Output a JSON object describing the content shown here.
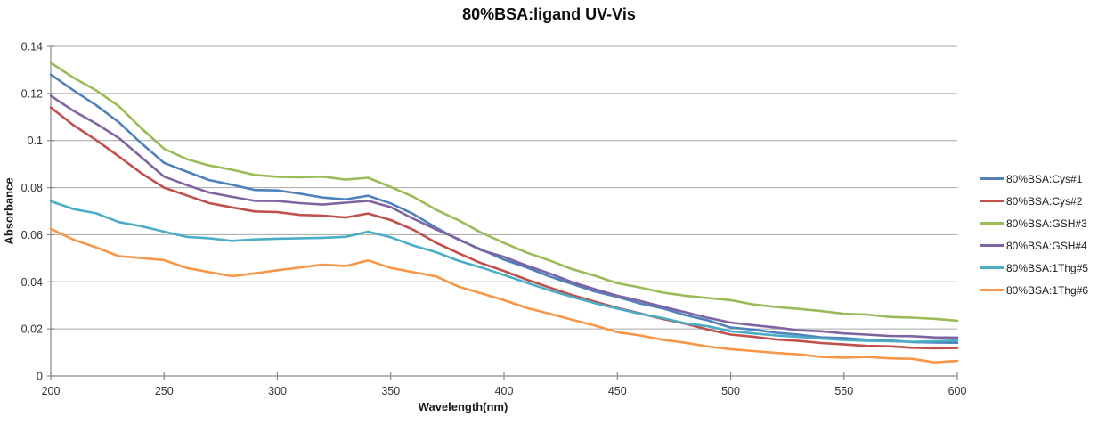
{
  "chart": {
    "title": "80%BSA:ligand UV-Vis",
    "xlabel": "Wavelength(nm)",
    "ylabel": "Absorbance"
  },
  "colors": {
    "background": "#ffffff",
    "gridline": "#a6a6a6",
    "axis_line": "#898989",
    "tick_text": "#333333",
    "title_text": "#0d0d0d"
  },
  "chart_data": {
    "type": "line",
    "title": "80%BSA:ligand UV-Vis",
    "xlabel": "Wavelength(nm)",
    "ylabel": "Absorbance",
    "xlim": [
      200,
      600
    ],
    "ylim": [
      0,
      0.14
    ],
    "grid": true,
    "legend_position": "right",
    "x_ticks": [
      200,
      250,
      300,
      350,
      400,
      450,
      500,
      550,
      600
    ],
    "y_ticks": [
      0,
      0.02,
      0.04,
      0.06,
      0.08,
      0.1,
      0.12,
      0.14
    ],
    "y_tick_labels": [
      "0",
      "0.02",
      "0.04",
      "0.06",
      "0.08",
      "0.1",
      "0.12",
      "0.14"
    ],
    "x": [
      200,
      210,
      220,
      230,
      240,
      250,
      260,
      270,
      280,
      290,
      300,
      310,
      320,
      330,
      340,
      350,
      360,
      370,
      380,
      390,
      400,
      410,
      420,
      430,
      440,
      450,
      460,
      470,
      480,
      490,
      500,
      510,
      520,
      530,
      540,
      550,
      560,
      570,
      580,
      590,
      600
    ],
    "series": [
      {
        "id": "cys1",
        "name": "80%BSA:Cys#1",
        "color": "#4F81BD",
        "values": [
          0.128,
          0.1213,
          0.115,
          0.1078,
          0.0988,
          0.0905,
          0.0868,
          0.0832,
          0.0812,
          0.079,
          0.0788,
          0.0774,
          0.0758,
          0.075,
          0.0766,
          0.0733,
          0.0688,
          0.063,
          0.0578,
          0.0537,
          0.0494,
          0.0461,
          0.0423,
          0.0391,
          0.0359,
          0.0336,
          0.0308,
          0.0287,
          0.0259,
          0.0236,
          0.0206,
          0.0197,
          0.0184,
          0.0176,
          0.0164,
          0.0161,
          0.0154,
          0.0151,
          0.0144,
          0.0142,
          0.0141
        ]
      },
      {
        "id": "cys2",
        "name": "80%BSA:Cys#2",
        "color": "#C0504D",
        "values": [
          0.114,
          0.1065,
          0.1002,
          0.0933,
          0.0861,
          0.08,
          0.0767,
          0.0734,
          0.0716,
          0.0699,
          0.0696,
          0.0684,
          0.0681,
          0.0673,
          0.069,
          0.0662,
          0.0621,
          0.0566,
          0.0521,
          0.0479,
          0.0446,
          0.0409,
          0.0376,
          0.0344,
          0.0316,
          0.0289,
          0.0266,
          0.0242,
          0.0222,
          0.0197,
          0.0176,
          0.0167,
          0.0155,
          0.0149,
          0.014,
          0.0134,
          0.0128,
          0.0126,
          0.012,
          0.0118,
          0.0119
        ]
      },
      {
        "id": "gsh3",
        "name": "80%BSA:GSH#3",
        "color": "#9BBB59",
        "values": [
          0.133,
          0.1267,
          0.1213,
          0.1146,
          0.1052,
          0.0965,
          0.0921,
          0.0894,
          0.0876,
          0.0854,
          0.0846,
          0.0844,
          0.0847,
          0.0834,
          0.0842,
          0.0803,
          0.0761,
          0.0706,
          0.0661,
          0.0609,
          0.0565,
          0.0524,
          0.0491,
          0.0454,
          0.0426,
          0.0394,
          0.0376,
          0.0354,
          0.0341,
          0.0331,
          0.0322,
          0.0304,
          0.0293,
          0.0285,
          0.0276,
          0.0264,
          0.0261,
          0.0251,
          0.0248,
          0.0243,
          0.0235
        ]
      },
      {
        "id": "gsh4",
        "name": "80%BSA:GSH#4",
        "color": "#8064A2",
        "values": [
          0.119,
          0.1126,
          0.1072,
          0.1011,
          0.0929,
          0.0847,
          0.0811,
          0.0779,
          0.0761,
          0.0744,
          0.0743,
          0.0734,
          0.0728,
          0.0736,
          0.0744,
          0.0717,
          0.0668,
          0.0623,
          0.0581,
          0.0534,
          0.0506,
          0.0469,
          0.0436,
          0.0399,
          0.0369,
          0.0341,
          0.0319,
          0.0294,
          0.0271,
          0.0247,
          0.0227,
          0.0216,
          0.0206,
          0.0194,
          0.019,
          0.0181,
          0.0176,
          0.017,
          0.0169,
          0.0164,
          0.0163
        ]
      },
      {
        "id": "thg5",
        "name": "80%BSA:1Thg#5",
        "color": "#4BACC6",
        "values": [
          0.0742,
          0.0709,
          0.0691,
          0.0654,
          0.0636,
          0.0613,
          0.0591,
          0.0585,
          0.0574,
          0.058,
          0.0583,
          0.0585,
          0.0587,
          0.0591,
          0.0613,
          0.0589,
          0.0554,
          0.0526,
          0.0489,
          0.0461,
          0.0429,
          0.0396,
          0.0364,
          0.0336,
          0.0309,
          0.0286,
          0.0264,
          0.0246,
          0.0224,
          0.0211,
          0.019,
          0.0181,
          0.0172,
          0.0166,
          0.0159,
          0.0153,
          0.015,
          0.0148,
          0.0145,
          0.0147,
          0.0151
        ]
      },
      {
        "id": "thg6",
        "name": "80%BSA:1Thg#6",
        "color": "#F79646",
        "values": [
          0.0625,
          0.0579,
          0.0546,
          0.0509,
          0.0501,
          0.0492,
          0.0459,
          0.0441,
          0.0424,
          0.0436,
          0.0449,
          0.0461,
          0.0473,
          0.0467,
          0.0491,
          0.0459,
          0.0441,
          0.0423,
          0.0379,
          0.0351,
          0.0322,
          0.0289,
          0.0265,
          0.0239,
          0.0214,
          0.0186,
          0.0172,
          0.0154,
          0.0141,
          0.0125,
          0.0114,
          0.0106,
          0.0098,
          0.0092,
          0.0081,
          0.0078,
          0.0081,
          0.0075,
          0.0073,
          0.0058,
          0.0064
        ]
      }
    ]
  }
}
